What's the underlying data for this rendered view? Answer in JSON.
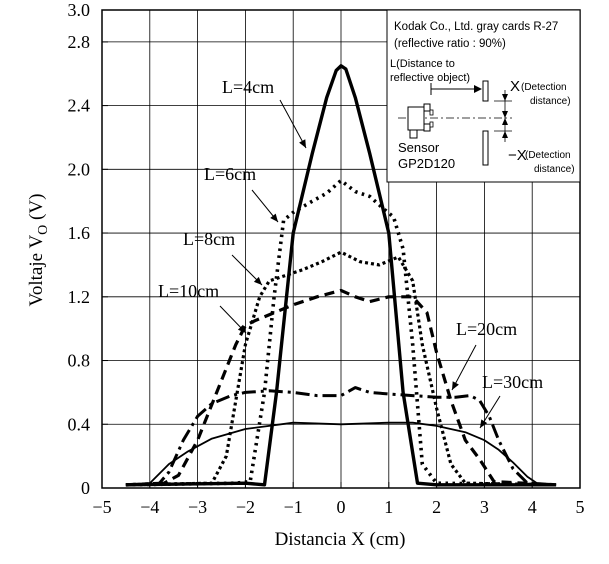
{
  "chart_data": {
    "type": "line",
    "xlabel": "Distancia X (cm)",
    "ylabel_main": "Voltaje V",
    "ylabel_sub": "O",
    "ylabel_unit": " (V)",
    "xlim": [
      -5,
      5
    ],
    "ylim": [
      0,
      3.0
    ],
    "x_ticks": [
      -5,
      -4,
      -3,
      -2,
      -1,
      0,
      1,
      2,
      3,
      4,
      5
    ],
    "x_tick_labels": [
      "−5",
      "−4",
      "−3",
      "−2",
      "−1",
      "0",
      "1",
      "2",
      "3",
      "4",
      "5"
    ],
    "y_ticks": [
      0,
      0.4,
      0.8,
      1.2,
      1.6,
      2.0,
      2.4,
      2.8,
      3.0
    ],
    "y_tick_labels": [
      "0",
      "0.4",
      "0.8",
      "1.2",
      "1.6",
      "2.0",
      "2.4",
      "2.8",
      "3.0"
    ],
    "grid": true,
    "series": [
      {
        "name": "L=4cm",
        "style": "solid-thick",
        "x": [
          -4.5,
          -2.0,
          -1.6,
          -1.35,
          -1.0,
          -0.6,
          -0.3,
          -0.1,
          0.0,
          0.1,
          0.3,
          0.6,
          1.0,
          1.3,
          1.6,
          2.0,
          4.5
        ],
        "y": [
          0.02,
          0.03,
          0.02,
          0.6,
          1.6,
          2.1,
          2.45,
          2.62,
          2.65,
          2.63,
          2.45,
          2.1,
          1.6,
          0.6,
          0.03,
          0.02,
          0.02
        ]
      },
      {
        "name": "L=6cm",
        "style": "dotted-thick",
        "x": [
          -4.5,
          -2.2,
          -1.9,
          -1.6,
          -1.4,
          -1.2,
          -1.0,
          -0.6,
          -0.3,
          0.0,
          0.3,
          0.6,
          0.9,
          1.1,
          1.3,
          1.5,
          1.7,
          2.0,
          4.5
        ],
        "y": [
          0.02,
          0.03,
          0.04,
          0.6,
          1.2,
          1.68,
          1.73,
          1.8,
          1.85,
          1.93,
          1.86,
          1.83,
          1.75,
          1.7,
          1.5,
          0.9,
          0.15,
          0.03,
          0.02
        ]
      },
      {
        "name": "L=8cm",
        "style": "dotted-dense",
        "x": [
          -4.5,
          -2.7,
          -2.4,
          -2.0,
          -1.7,
          -1.5,
          -1.2,
          -0.8,
          -0.4,
          0.0,
          0.4,
          0.8,
          1.2,
          1.5,
          1.7,
          2.0,
          2.3,
          2.6,
          4.5
        ],
        "y": [
          0.02,
          0.03,
          0.2,
          0.9,
          1.2,
          1.3,
          1.33,
          1.37,
          1.42,
          1.48,
          1.42,
          1.4,
          1.45,
          1.3,
          0.9,
          0.5,
          0.15,
          0.03,
          0.02
        ]
      },
      {
        "name": "L=10cm",
        "style": "dashed-thick",
        "x": [
          -4.5,
          -3.7,
          -3.4,
          -3.0,
          -2.6,
          -2.2,
          -2.0,
          -1.8,
          -1.4,
          -1.0,
          -0.5,
          0.0,
          0.3,
          0.6,
          1.0,
          1.5,
          1.8,
          2.0,
          2.3,
          2.6,
          2.9,
          3.2,
          4.5
        ],
        "y": [
          0.02,
          0.03,
          0.08,
          0.3,
          0.6,
          0.9,
          1.02,
          1.05,
          1.1,
          1.15,
          1.2,
          1.24,
          1.2,
          1.17,
          1.2,
          1.2,
          1.1,
          0.85,
          0.55,
          0.3,
          0.18,
          0.04,
          0.02
        ]
      },
      {
        "name": "L=20cm",
        "style": "dash-dot",
        "x": [
          -4.5,
          -3.8,
          -3.6,
          -3.3,
          -3.0,
          -2.7,
          -2.3,
          -2.0,
          -1.5,
          -1.0,
          -0.5,
          0.0,
          0.3,
          0.6,
          1.0,
          1.5,
          2.0,
          2.4,
          2.7,
          2.9,
          3.1,
          3.3,
          3.6,
          3.9,
          4.5
        ],
        "y": [
          0.02,
          0.03,
          0.1,
          0.3,
          0.45,
          0.53,
          0.58,
          0.6,
          0.61,
          0.6,
          0.58,
          0.58,
          0.63,
          0.6,
          0.59,
          0.58,
          0.57,
          0.57,
          0.58,
          0.55,
          0.45,
          0.3,
          0.12,
          0.03,
          0.02
        ]
      },
      {
        "name": "L=30cm",
        "style": "solid-thin",
        "x": [
          -4.5,
          -4.0,
          -3.6,
          -3.2,
          -2.7,
          -2.0,
          -1.0,
          0.0,
          1.0,
          1.5,
          2.0,
          2.6,
          3.0,
          3.3,
          3.6,
          3.9,
          4.1,
          4.5
        ],
        "y": [
          0.02,
          0.03,
          0.15,
          0.23,
          0.31,
          0.37,
          0.41,
          0.4,
          0.41,
          0.41,
          0.39,
          0.35,
          0.3,
          0.24,
          0.16,
          0.07,
          0.03,
          0.02
        ]
      }
    ]
  },
  "inset": {
    "title_line1": "Kodak Co., Ltd. gray cards R-27",
    "title_line2": "(reflective ratio : 90%)",
    "l_label_line1": "L(Distance to",
    "l_label_line2": "reflective object)",
    "x_plus_label": "X",
    "x_plus_note_line1": "(Detection",
    "x_plus_note_line2": "distance)",
    "x_minus_label": "−X",
    "x_minus_note_line1": "(Detection",
    "x_minus_note_line2": "distance)",
    "sensor_line1": "Sensor",
    "sensor_line2": "GP2D120"
  }
}
